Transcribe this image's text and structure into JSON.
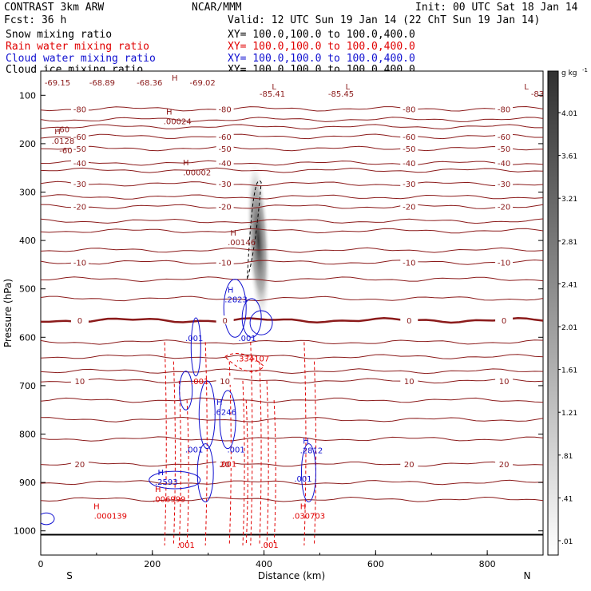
{
  "header": {
    "left1": "CONTRAST  3km ARW",
    "center1": "NCAR/MMM",
    "right1": "Init: 00 UTC Sat 18 Jan 14",
    "left2": "Fcst:   36 h",
    "right2": "Valid: 12 UTC Sun 19 Jan 14 (22 ChT Sun 19 Jan 14)"
  },
  "legend": [
    {
      "label": "Snow mixing ratio",
      "xs": "XY= 100.0,100.0 to 100.0,400.0",
      "color": "#000000"
    },
    {
      "label": "Rain water mixing ratio",
      "xs": "XY= 100.0,100.0 to 100.0,400.0",
      "color": "#e00000"
    },
    {
      "label": "Cloud water mixing ratio",
      "xs": "XY= 100.0,100.0 to 100.0,400.0",
      "color": "#1010d0"
    },
    {
      "label": "Cloud ice mixing ratio",
      "xs": "XY= 100.0,100.0 to 100.0,400.0",
      "color": "#000000"
    }
  ],
  "chart_data": {
    "type": "contour",
    "xlabel": "Distance (km)",
    "ylabel": "Pressure (hPa)",
    "xlim": [
      0,
      900
    ],
    "ylim": [
      1050,
      50
    ],
    "x_ticks": [
      0,
      200,
      400,
      600,
      800
    ],
    "y_ticks": [
      100,
      200,
      300,
      400,
      500,
      600,
      700,
      800,
      900,
      1000
    ],
    "direction_labels": {
      "left": "S",
      "right": "N"
    },
    "temperature_color": "#8b1a1a",
    "temperature_contours": [
      {
        "label": "-80",
        "p": 128
      },
      {
        "label": "-60",
        "p": 185
      },
      {
        "label": "-50",
        "p": 210
      },
      {
        "label": "-40",
        "p": 240
      },
      {
        "label": "-30",
        "p": 283
      },
      {
        "label": "-20",
        "p": 330
      },
      {
        "label": "-10",
        "p": 445
      },
      {
        "label": "0",
        "p": 565
      },
      {
        "label": "10",
        "p": 690
      },
      {
        "label": "20",
        "p": 862
      }
    ],
    "extra_temperature_levels_p": [
      150,
      165,
      255,
      310,
      360,
      380,
      420,
      480,
      520,
      610,
      640,
      670,
      730,
      770,
      810,
      900,
      935
    ],
    "temperature_annotations": [
      {
        "text": "-69.15",
        "x": 30,
        "p": 80
      },
      {
        "text": "-68.89",
        "x": 110,
        "p": 80
      },
      {
        "text": "-68.36",
        "x": 195,
        "p": 80
      },
      {
        "text": "-69.02",
        "x": 290,
        "p": 80
      },
      {
        "text": "-85.41",
        "x": 415,
        "p": 103
      },
      {
        "text": "-85.45",
        "x": 538,
        "p": 103
      },
      {
        "text": "-83",
        "x": 890,
        "p": 103
      },
      {
        "text": "L",
        "x": 418,
        "p": 88
      },
      {
        "text": "L",
        "x": 550,
        "p": 88
      },
      {
        "text": "L",
        "x": 870,
        "p": 88
      },
      {
        "text": "H",
        "x": 240,
        "p": 70
      },
      {
        "text": "H",
        "x": 230,
        "p": 140
      },
      {
        "text": ".00024",
        "x": 245,
        "p": 160
      },
      {
        "text": "H",
        "x": 260,
        "p": 245
      },
      {
        "text": ".00002",
        "x": 280,
        "p": 265
      },
      {
        "text": "H",
        "x": 345,
        "p": 390
      },
      {
        "text": ".00146",
        "x": 360,
        "p": 410
      },
      {
        "text": "H",
        "x": 30,
        "p": 180
      },
      {
        "text": ".0128",
        "x": 40,
        "p": 200
      },
      {
        "text": "-60",
        "x": 40,
        "p": 176
      },
      {
        "text": "-60",
        "x": 45,
        "p": 220
      }
    ],
    "cloud_ice_max": {
      "x": 390,
      "p_top": 230,
      "p_bottom": 570
    },
    "cloud_water_labels": [
      {
        "text": "H",
        "x": 340,
        "p": 508
      },
      {
        "text": ".2823",
        "x": 350,
        "p": 528
      },
      {
        "text": ".001",
        "x": 275,
        "p": 608
      },
      {
        "text": ".001",
        "x": 370,
        "p": 608
      },
      {
        "text": "H",
        "x": 320,
        "p": 740
      },
      {
        "text": ".6246",
        "x": 330,
        "p": 760
      },
      {
        "text": ".001",
        "x": 275,
        "p": 838
      },
      {
        "text": ".001",
        "x": 350,
        "p": 838
      },
      {
        "text": "H",
        "x": 215,
        "p": 885
      },
      {
        "text": ".2593",
        "x": 225,
        "p": 905
      },
      {
        "text": "H",
        "x": 475,
        "p": 820
      },
      {
        "text": ".2812",
        "x": 485,
        "p": 840
      },
      {
        "text": ".001",
        "x": 470,
        "p": 898
      }
    ],
    "rain_labels": [
      {
        "text": ".334107",
        "x": 380,
        "p": 650
      },
      {
        "text": ".001",
        "x": 285,
        "p": 697
      },
      {
        "text": ".001",
        "x": 335,
        "p": 868
      },
      {
        "text": "H",
        "x": 210,
        "p": 920
      },
      {
        "text": ".006999",
        "x": 230,
        "p": 940
      },
      {
        "text": "H",
        "x": 100,
        "p": 955
      },
      {
        "text": ".000139",
        "x": 125,
        "p": 975
      },
      {
        "text": "H",
        "x": 470,
        "p": 955
      },
      {
        "text": ".030703",
        "x": 480,
        "p": 975
      },
      {
        "text": ".001",
        "x": 260,
        "p": 1035
      },
      {
        "text": ".001",
        "x": 410,
        "p": 1035
      }
    ],
    "colorbar": {
      "unit": "g kg",
      "unit_exp": "-1",
      "ticks": [
        "4.01",
        "3.61",
        "3.21",
        "2.81",
        "2.41",
        "2.01",
        "1.61",
        "1.21",
        ".81",
        ".41",
        ".01"
      ]
    }
  }
}
